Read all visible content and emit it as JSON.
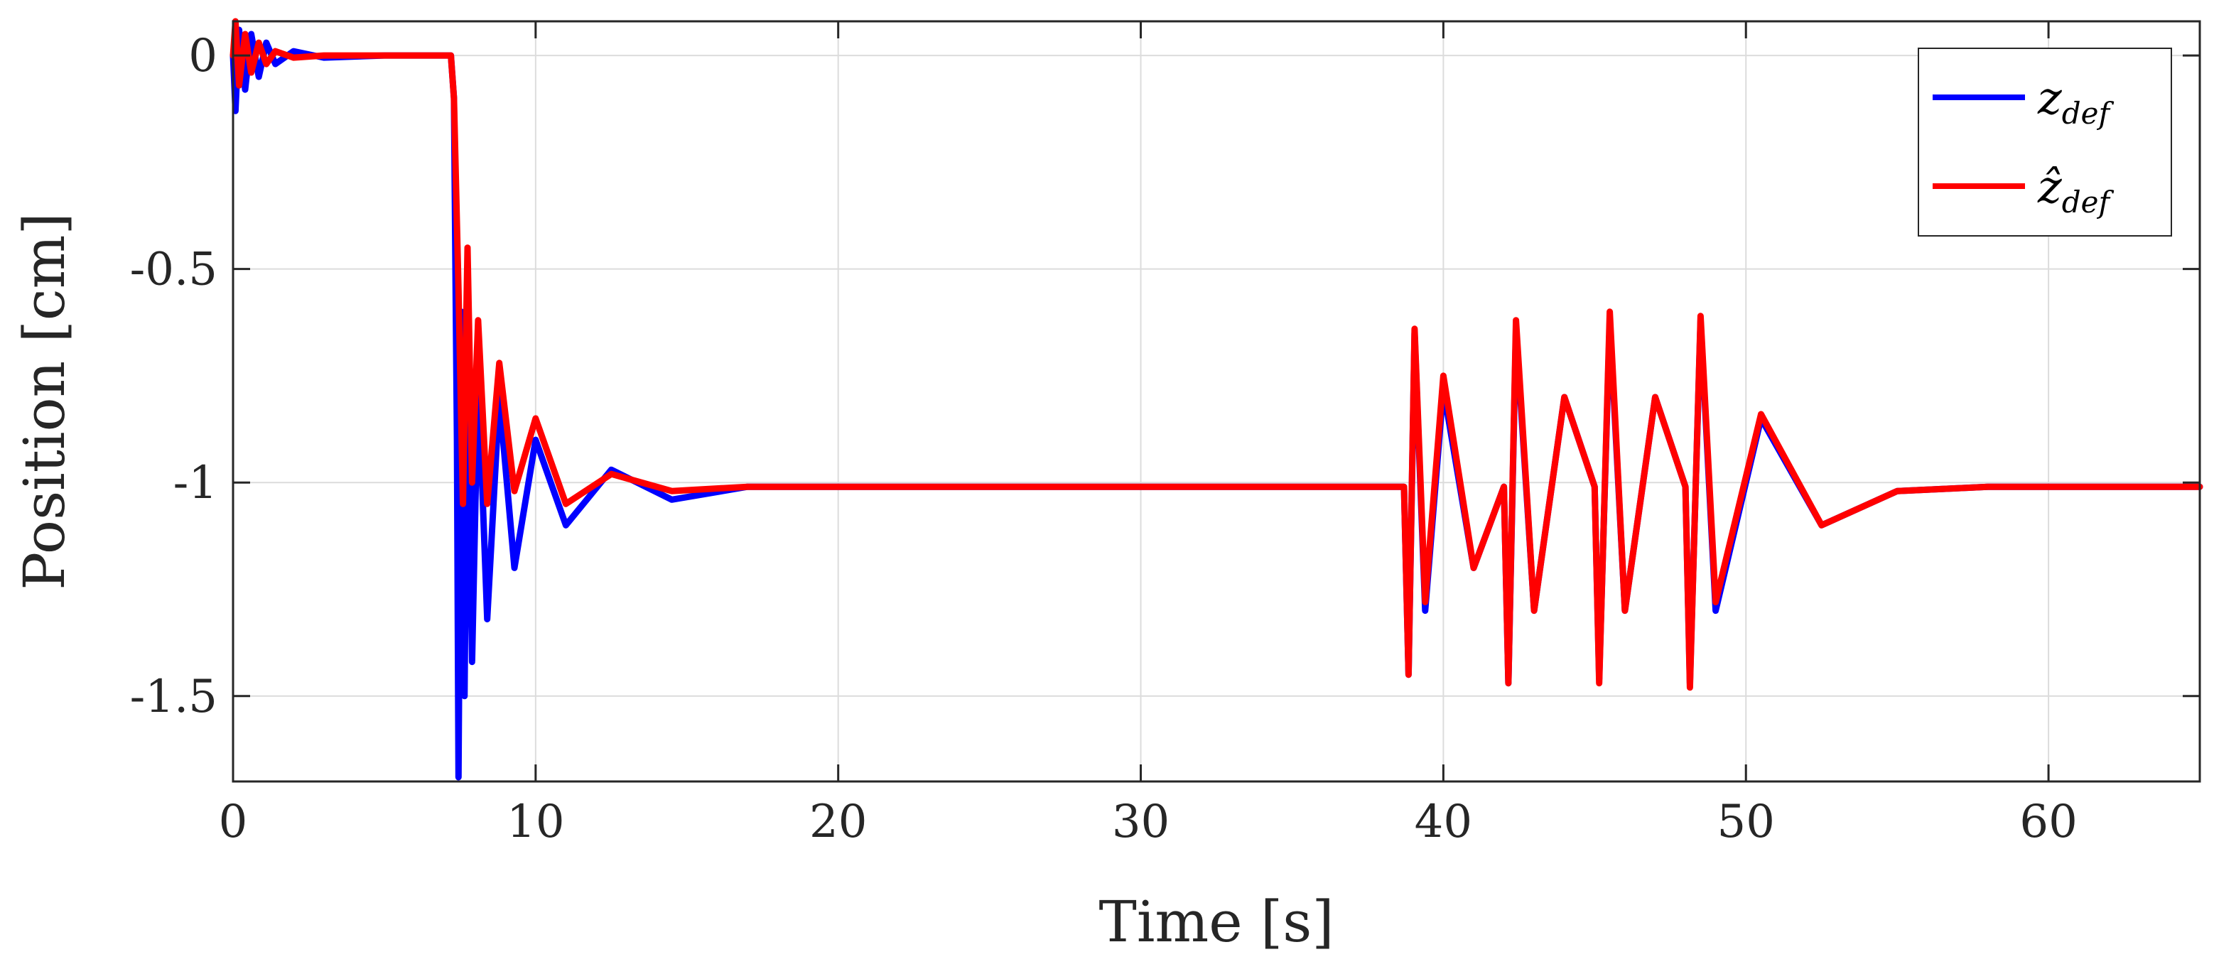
{
  "chart_data": {
    "type": "line",
    "title": "",
    "xlabel": "Time [s]",
    "ylabel": "Position [cm]",
    "xlim": [
      0,
      65
    ],
    "ylim": [
      -1.7,
      0.08
    ],
    "xticks": [
      0,
      10,
      20,
      30,
      40,
      50,
      60
    ],
    "xtick_labels": [
      "0",
      "10",
      "20",
      "30",
      "40",
      "50",
      "60"
    ],
    "yticks": [
      0,
      -0.5,
      -1,
      -1.5
    ],
    "ytick_labels": [
      "0",
      "-0.5",
      "-1",
      "-1.5"
    ],
    "grid": true,
    "legend_position": "top-right",
    "series": [
      {
        "name": "z_def",
        "legend_base": "z",
        "legend_sub": "def",
        "color": "#0000ff",
        "x": [
          0,
          0.08,
          0.2,
          0.4,
          0.6,
          0.85,
          1.1,
          1.4,
          2.0,
          3.0,
          5.0,
          7.2,
          7.3,
          7.4,
          7.45,
          7.55,
          7.65,
          7.75,
          7.9,
          8.1,
          8.4,
          8.8,
          9.3,
          10.0,
          11.0,
          12.5,
          14.5,
          17.0,
          20.0,
          38.7,
          38.85,
          39.05,
          39.4,
          40.0,
          41.0,
          42.0,
          42.15,
          42.4,
          43.0,
          44.0,
          45.0,
          45.15,
          45.5,
          46.0,
          47.0,
          48.0,
          48.15,
          48.5,
          49.0,
          50.5,
          52.5,
          55.0,
          58.0,
          65.0
        ],
        "y": [
          0,
          -0.13,
          0.06,
          -0.08,
          0.05,
          -0.05,
          0.03,
          -0.02,
          0.01,
          -0.005,
          0,
          0,
          -0.1,
          -0.9,
          -1.69,
          -0.6,
          -1.5,
          -0.7,
          -1.42,
          -0.75,
          -1.32,
          -0.8,
          -1.2,
          -0.9,
          -1.1,
          -0.97,
          -1.04,
          -1.01,
          -1.01,
          -1.01,
          -1.45,
          -0.65,
          -1.3,
          -0.78,
          -1.2,
          -1.01,
          -1.47,
          -0.64,
          -1.3,
          -0.8,
          -1.01,
          -1.46,
          -0.62,
          -1.3,
          -0.8,
          -1.01,
          -1.47,
          -0.62,
          -1.3,
          -0.85,
          -1.1,
          -1.02,
          -1.01,
          -1.01
        ]
      },
      {
        "name": "ẑ_def",
        "legend_base": "ẑ",
        "legend_sub": "def",
        "color": "#ff0000",
        "x": [
          0,
          0.08,
          0.2,
          0.4,
          0.6,
          0.85,
          1.1,
          1.4,
          2.0,
          3.0,
          5.0,
          7.2,
          7.3,
          7.45,
          7.6,
          7.75,
          7.9,
          8.1,
          8.4,
          8.8,
          9.3,
          10.0,
          11.0,
          12.5,
          14.5,
          17.0,
          20.0,
          38.7,
          38.85,
          39.05,
          39.4,
          40.0,
          41.0,
          42.0,
          42.15,
          42.4,
          43.0,
          44.0,
          45.0,
          45.15,
          45.5,
          46.0,
          47.0,
          48.0,
          48.15,
          48.5,
          49.0,
          50.5,
          52.5,
          55.0,
          58.0,
          65.0
        ],
        "y": [
          0,
          0.08,
          -0.07,
          0.05,
          -0.04,
          0.03,
          -0.02,
          0.01,
          -0.005,
          0,
          0,
          0,
          -0.1,
          -0.55,
          -1.05,
          -0.45,
          -1.0,
          -0.62,
          -1.05,
          -0.72,
          -1.02,
          -0.85,
          -1.05,
          -0.98,
          -1.02,
          -1.01,
          -1.01,
          -1.01,
          -1.45,
          -0.64,
          -1.28,
          -0.75,
          -1.2,
          -1.01,
          -1.47,
          -0.62,
          -1.3,
          -0.8,
          -1.01,
          -1.47,
          -0.6,
          -1.3,
          -0.8,
          -1.01,
          -1.48,
          -0.61,
          -1.28,
          -0.84,
          -1.1,
          -1.02,
          -1.01,
          -1.01
        ]
      }
    ]
  }
}
